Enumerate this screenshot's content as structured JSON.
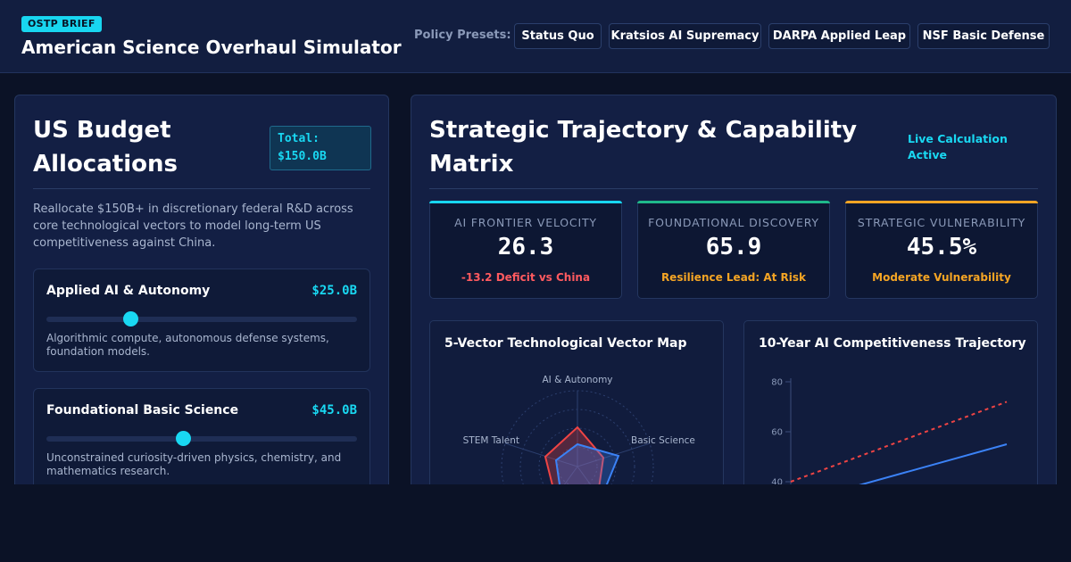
{
  "header": {
    "badge": "OSTP BRIEF",
    "title": "American Science Overhaul Simulator",
    "presets_label": "Policy Presets:",
    "presets": [
      "Status Quo",
      "Kratsios AI Supremacy",
      "DARPA Applied Leap",
      "NSF Basic Defense"
    ]
  },
  "budget": {
    "title_line1": "US Budget",
    "title_line2": "Allocations",
    "total_label": "Total:",
    "total_value": "$150.0B",
    "description": "Reallocate $150B+ in discretionary federal R&D across core technological vectors to model long-term US competitiveness against China.",
    "allocations": [
      {
        "name": "Applied AI & Autonomy",
        "value": "$25.0B",
        "slider_fraction": 0.27,
        "description": "Algorithmic compute, autonomous defense systems, foundation models."
      },
      {
        "name": "Foundational Basic Science",
        "value": "$45.0B",
        "slider_fraction": 0.44,
        "description": "Unconstrained curiosity-driven physics, chemistry, and mathematics research."
      }
    ]
  },
  "strategy": {
    "title_line1": "Strategic Trajectory & Capability",
    "title_line2": "Matrix",
    "live_line1": "Live Calculation",
    "live_line2": "Active",
    "kpis": [
      {
        "label": "AI FRONTIER VELOCITY",
        "value": "26.3",
        "note": "-13.2 Deficit vs China",
        "accent": "#18d6f0",
        "note_color": "#ff5a5f"
      },
      {
        "label": "FOUNDATIONAL DISCOVERY",
        "value": "65.9",
        "note": "Resilience Lead: At Risk",
        "accent": "#1fb98a",
        "note_color": "#f5a524"
      },
      {
        "label": "STRATEGIC VULNERABILITY",
        "value": "45.5%",
        "note": "Moderate Vulnerability",
        "accent": "#f5a524",
        "note_color": "#f5a524"
      }
    ]
  },
  "radar": {
    "title": "5-Vector Technological Vector Map",
    "axes": [
      "AI & Autonomy",
      "Basic Science",
      "STEM Talent"
    ],
    "colors": {
      "us": "#3b82f6",
      "china": "#ef4444"
    }
  },
  "trajectory": {
    "title": "10-Year AI Competitiveness Trajectory",
    "colors": {
      "us": "#3b82f6",
      "china": "#ef4444"
    }
  },
  "chart_data": [
    {
      "type": "line",
      "title": "10-Year AI Competitiveness Trajectory",
      "y_ticks": [
        "80",
        "60",
        "40"
      ],
      "ylim": [
        30,
        80
      ],
      "series": [
        {
          "style": "dashed",
          "color": "#ef4444",
          "x": [
            0,
            10
          ],
          "values": [
            40,
            72
          ]
        },
        {
          "style": "solid",
          "color": "#3b82f6",
          "x": [
            0,
            10
          ],
          "values": [
            31,
            55
          ]
        }
      ]
    }
  ]
}
